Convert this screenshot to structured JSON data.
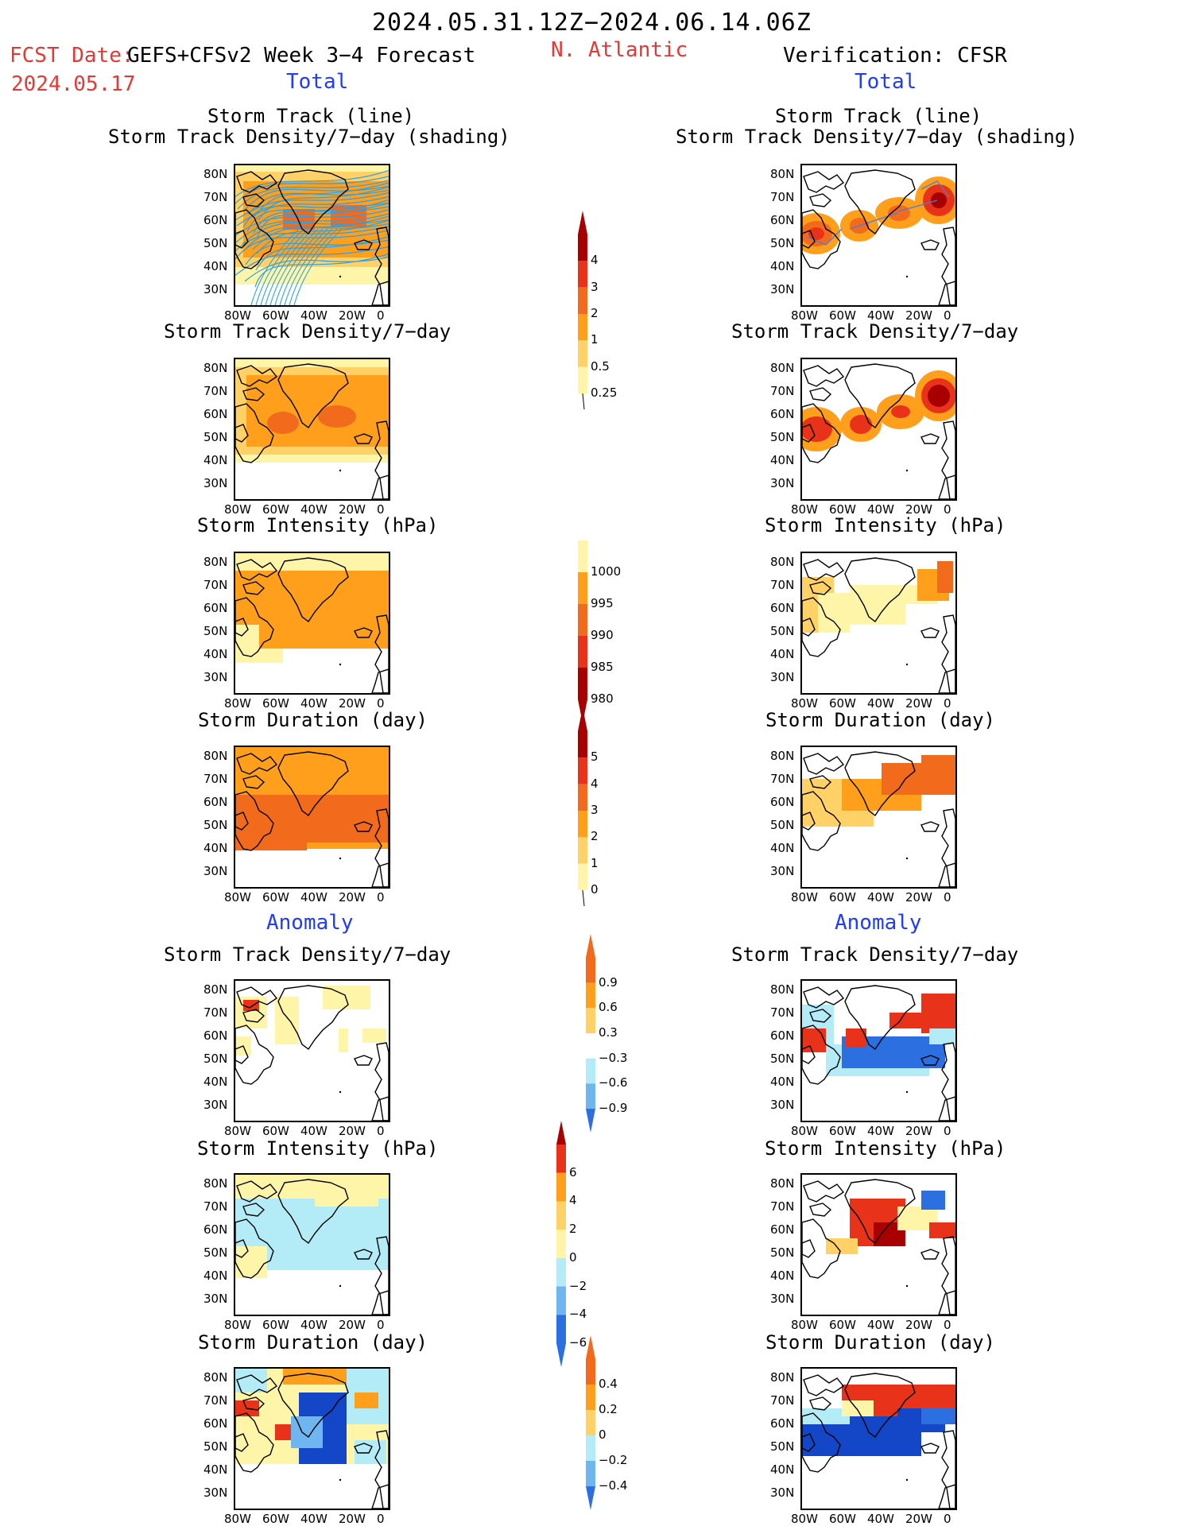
{
  "header": {
    "period": "2024.05.31.12Z−2024.06.14.06Z",
    "fcst_label": "FCST Date:",
    "fcst_product": "GEFS+CFSv2 Week 3−4 Forecast",
    "fcst_date": "2024.05.17",
    "region": "N. Atlantic",
    "verification": "Verification: CFSR",
    "total_left": "Total",
    "total_right": "Total",
    "anomaly_left": "Anomaly",
    "anomaly_right": "Anomaly"
  },
  "panels": {
    "track": {
      "title1": "Storm Track (line)",
      "title2": "Storm Track Density/7−day (shading)"
    },
    "density": "Storm Track Density/7−day",
    "intensity": "Storm Intensity (hPa)",
    "duration": "Storm Duration (day)"
  },
  "axes": {
    "lat_labels": [
      "80N",
      "70N",
      "60N",
      "50N",
      "40N",
      "30N"
    ],
    "lon_labels": [
      "80W",
      "60W",
      "40W",
      "20W",
      "0"
    ]
  },
  "colorbars": {
    "density_total": [
      "4",
      "3",
      "2",
      "1",
      "0.5",
      "0.25"
    ],
    "intensity_total": [
      "1000",
      "995",
      "990",
      "985",
      "980"
    ],
    "duration_total": [
      "5",
      "4",
      "3",
      "2",
      "1",
      "0"
    ],
    "density_anom": [
      "0.9",
      "0.6",
      "0.3",
      "−0.3",
      "−0.6",
      "−0.9"
    ],
    "intensity_anom": [
      "6",
      "4",
      "2",
      "0",
      "−2",
      "−4",
      "−6"
    ],
    "duration_anom": [
      "0.4",
      "0.2",
      "0",
      "−0.2",
      "−0.4"
    ]
  },
  "colors": {
    "pale_yellow": "#fff5a8",
    "light_orange": "#ffd166",
    "orange": "#ff9f1c",
    "dark_orange": "#f26a1b",
    "red": "#e8321a",
    "dark_red": "#a80000",
    "light_blue": "#b3ecf7",
    "mid_blue": "#6fb6f0",
    "blue": "#2c6fe0",
    "dark_blue": "#1446c8",
    "track_line": "#2aa1e6"
  }
}
